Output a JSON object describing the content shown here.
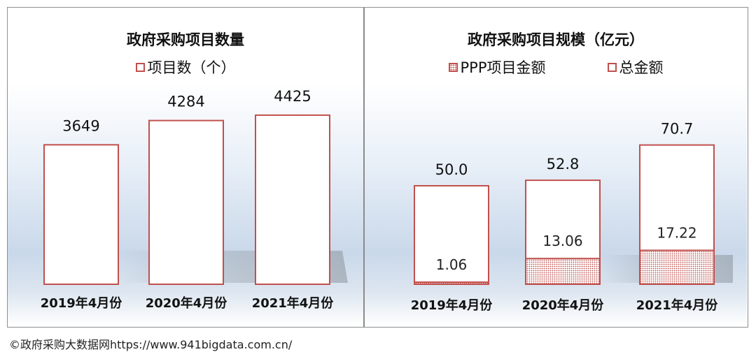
{
  "chart_data": [
    {
      "type": "bar",
      "title": "政府采购项目数量",
      "categories": [
        "2019年4月份",
        "2020年4月份",
        "2021年4月份"
      ],
      "series": [
        {
          "name": "项目数（个）",
          "values": [
            3649,
            4284,
            4425
          ],
          "labels": [
            "3649",
            "4284",
            "4425"
          ]
        }
      ],
      "ylim": [
        0,
        5300
      ],
      "legend": "top-center",
      "grid": false,
      "colors": {
        "border": "#c0504d",
        "fill": "#ffffff"
      }
    },
    {
      "type": "bar",
      "title": "政府采购项目规模（亿元）",
      "categories": [
        "2019年4月份",
        "2020年4月份",
        "2021年4月份"
      ],
      "series": [
        {
          "name": "PPP项目金额",
          "values": [
            1.06,
            13.06,
            17.22
          ],
          "labels": [
            "1.06",
            "13.06",
            "17.22"
          ]
        },
        {
          "name": "总金额",
          "values": [
            50.0,
            52.8,
            70.7
          ],
          "labels": [
            "50.0",
            "52.8",
            "70.7"
          ]
        }
      ],
      "ylim": [
        0,
        100
      ],
      "legend": "top-center",
      "grid": false,
      "colors": {
        "border": "#c0504d",
        "fill": "#ffffff",
        "pattern": "#c0504d"
      }
    }
  ],
  "source": "©政府采购大数据网https://www.941bigdata.com.cn/"
}
